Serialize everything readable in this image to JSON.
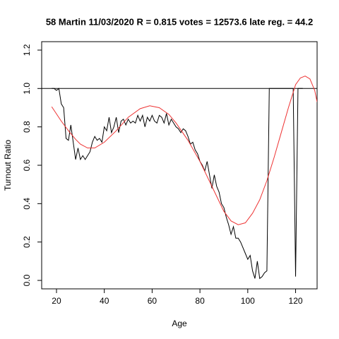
{
  "chart_data": {
    "type": "line",
    "title": "58 Martin 11/03/2020 R = 0.815 votes = 12573.6 late reg. = 44.2",
    "x_label": "Age",
    "y_label": "Turnout Ratio",
    "xlim": [
      13.8,
      129
    ],
    "ylim": [
      -0.044,
      1.244
    ],
    "xticks": [
      20,
      40,
      60,
      80,
      100,
      120
    ],
    "yticks": [
      {
        "value": 0,
        "label": "0.0"
      },
      0.2,
      0.4,
      0.6,
      0.8,
      {
        "value": 1,
        "label": "1.0"
      },
      1.2
    ],
    "hline": 1,
    "series": [
      {
        "color": "#000000",
        "x": [
          18,
          19,
          20,
          21,
          22,
          23,
          24,
          25,
          26,
          27,
          28,
          29,
          30,
          31,
          32,
          33,
          34,
          35,
          36,
          37,
          38,
          39,
          40,
          41,
          42,
          43,
          44,
          45,
          46,
          47,
          48,
          49,
          50,
          51,
          52,
          53,
          54,
          55,
          56,
          57,
          58,
          59,
          60,
          61,
          62,
          63,
          64,
          65,
          66,
          67,
          68,
          69,
          70,
          71,
          72,
          73,
          74,
          75,
          76,
          77,
          78,
          79,
          80,
          81,
          82,
          83,
          84,
          85,
          86,
          87,
          88,
          89,
          90,
          91,
          92,
          93,
          94,
          95,
          96,
          97,
          98,
          99,
          100,
          101,
          102,
          103,
          104,
          105,
          106,
          107,
          108,
          109,
          110,
          111,
          112,
          113,
          114,
          115,
          116,
          117,
          118,
          119,
          120,
          121,
          122,
          123
        ],
        "values": [
          1.0,
          1.0,
          0.99,
          1.0,
          0.92,
          0.9,
          0.74,
          0.73,
          0.81,
          0.72,
          0.63,
          0.69,
          0.63,
          0.65,
          0.63,
          0.65,
          0.67,
          0.72,
          0.75,
          0.73,
          0.74,
          0.72,
          0.8,
          0.78,
          0.85,
          0.77,
          0.8,
          0.85,
          0.77,
          0.83,
          0.84,
          0.81,
          0.84,
          0.82,
          0.83,
          0.82,
          0.86,
          0.83,
          0.86,
          0.8,
          0.85,
          0.83,
          0.86,
          0.83,
          0.82,
          0.86,
          0.85,
          0.82,
          0.87,
          0.81,
          0.84,
          0.82,
          0.8,
          0.79,
          0.77,
          0.79,
          0.78,
          0.75,
          0.71,
          0.72,
          0.68,
          0.66,
          0.62,
          0.6,
          0.57,
          0.62,
          0.55,
          0.48,
          0.55,
          0.49,
          0.46,
          0.4,
          0.38,
          0.33,
          0.29,
          0.24,
          0.28,
          0.22,
          0.22,
          0.2,
          0.17,
          0.14,
          0.11,
          0.13,
          0.05,
          0.01,
          0.1,
          0.01,
          0.02,
          0.04,
          0.05,
          1,
          1,
          1,
          1,
          1,
          1,
          1,
          1,
          1,
          1,
          1,
          0.02,
          1,
          1,
          1
        ]
      },
      {
        "color": "#ee3333",
        "x": [
          18,
          22,
          25,
          28,
          30,
          33,
          36,
          40,
          45,
          50,
          55,
          59,
          63,
          67,
          70,
          75,
          80,
          85,
          90,
          93,
          96,
          99,
          102,
          105,
          108,
          111,
          114,
          117,
          120,
          122,
          124,
          126,
          128,
          129
        ],
        "values": [
          0.905,
          0.83,
          0.78,
          0.735,
          0.71,
          0.69,
          0.69,
          0.72,
          0.78,
          0.85,
          0.895,
          0.91,
          0.9,
          0.865,
          0.82,
          0.73,
          0.62,
          0.49,
          0.36,
          0.31,
          0.29,
          0.3,
          0.35,
          0.42,
          0.52,
          0.64,
          0.77,
          0.9,
          1.02,
          1.055,
          1.065,
          1.05,
          0.99,
          0.93
        ]
      }
    ]
  }
}
